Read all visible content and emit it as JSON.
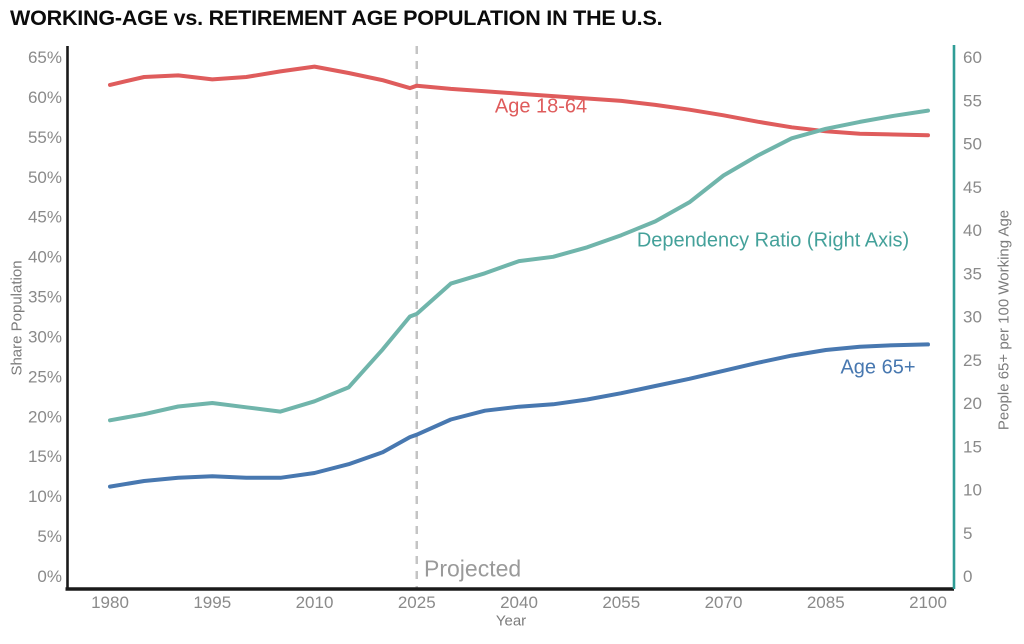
{
  "title": "WORKING-AGE vs. RETIREMENT AGE POPULATION IN THE U.S.",
  "chart_data": {
    "type": "line",
    "title": "WORKING-AGE vs. RETIREMENT AGE POPULATION IN THE U.S.",
    "x_axis": {
      "label": "Year",
      "ticks": [
        1980,
        1995,
        2010,
        2025,
        2040,
        2055,
        2070,
        2085,
        2100
      ],
      "range": [
        1980,
        2100
      ]
    },
    "left_axis": {
      "label": "Share Population",
      "tick_labels": [
        "0%",
        "5%",
        "10%",
        "15%",
        "20%",
        "25%",
        "30%",
        "35%",
        "40%",
        "45%",
        "50%",
        "55%",
        "60%",
        "65%"
      ],
      "range": [
        0,
        65
      ],
      "axis_color": "#1a1a1a"
    },
    "right_axis": {
      "label": "People 65+ per 100 Working Age",
      "tick_labels": [
        "0",
        "5",
        "10",
        "15",
        "20",
        "25",
        "30",
        "35",
        "40",
        "45",
        "50",
        "55",
        "60"
      ],
      "range": [
        0,
        60
      ],
      "axis_color": "#2f9d96"
    },
    "years": [
      1980,
      1985,
      1990,
      1995,
      2000,
      2005,
      2010,
      2015,
      2020,
      2024,
      2025,
      2030,
      2035,
      2040,
      2045,
      2050,
      2055,
      2060,
      2065,
      2070,
      2075,
      2080,
      2085,
      2090,
      2095,
      2100
    ],
    "series": [
      {
        "name": "Age 18-64",
        "axis": "left",
        "color": "#df5c5c",
        "values": [
          61.5,
          62.5,
          62.7,
          62.2,
          62.5,
          63.2,
          63.8,
          63.0,
          62.1,
          61.1,
          61.4,
          61.0,
          60.7,
          60.4,
          60.1,
          59.8,
          59.5,
          59.0,
          58.4,
          57.7,
          56.9,
          56.2,
          55.7,
          55.4,
          55.3,
          55.2
        ]
      },
      {
        "name": "Age 65+",
        "axis": "left",
        "color": "#4878b0",
        "values": [
          11.2,
          11.9,
          12.3,
          12.5,
          12.3,
          12.3,
          12.9,
          14.0,
          15.5,
          17.4,
          17.7,
          19.6,
          20.7,
          21.2,
          21.5,
          22.1,
          22.9,
          23.8,
          24.7,
          25.7,
          26.7,
          27.6,
          28.3,
          28.7,
          28.9,
          29.0
        ]
      },
      {
        "name": "Dependency Ratio",
        "axis": "right",
        "color": "#70b5ab",
        "values": [
          18.0,
          18.7,
          19.6,
          20.0,
          19.5,
          19.0,
          20.2,
          21.8,
          26.2,
          30.0,
          30.3,
          33.8,
          35.0,
          36.4,
          36.9,
          38.0,
          39.4,
          41.0,
          43.2,
          46.3,
          48.6,
          50.6,
          51.7,
          52.5,
          53.2,
          53.8
        ]
      }
    ],
    "projection": {
      "start_year": 2025,
      "label": "Projected",
      "line_color": "#c4c4c4"
    },
    "series_labels": [
      {
        "text": "Age 18-64",
        "color": "#df5c5c"
      },
      {
        "text": "Dependency Ratio (Right Axis)",
        "color": "#44a19a"
      },
      {
        "text": "Age 65+",
        "color": "#4878b0"
      }
    ],
    "legend_position": "inline-annotations",
    "grid": false
  }
}
